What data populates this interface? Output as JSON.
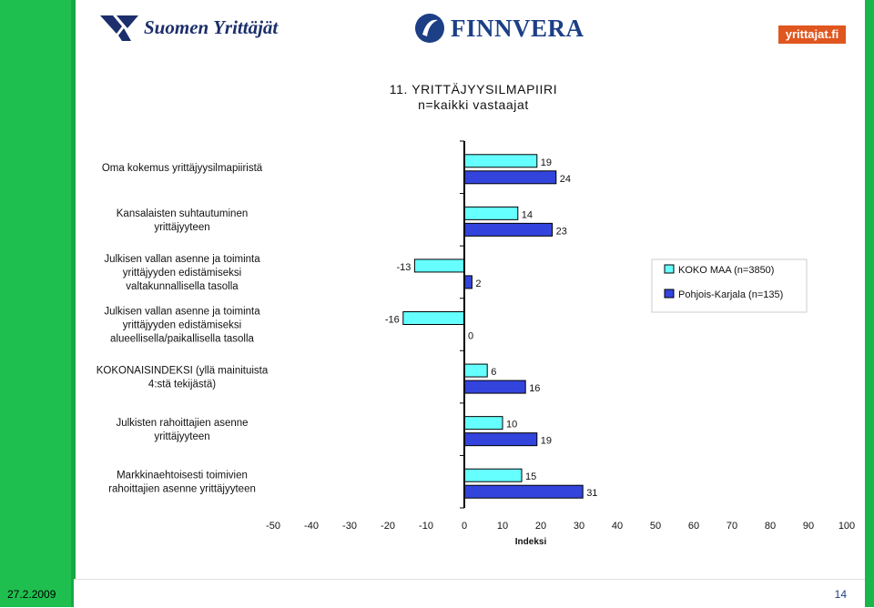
{
  "header": {
    "logo_left": "Suomen Yrittäjät",
    "logo_center": "FINNVERA",
    "logo_right": "yrittajat.fi"
  },
  "footer": {
    "date": "27.2.2009",
    "page": "14"
  },
  "chart_data": {
    "type": "bar",
    "orientation": "horizontal",
    "title": "11. YRITTÄJYYSILMAPIIRI",
    "subtitle": "n=kaikki vastaajat",
    "xlabel": "Indeksi",
    "ylabel": "",
    "xlim": [
      -50,
      100
    ],
    "xticks": [
      -50,
      -40,
      -30,
      -20,
      -10,
      0,
      10,
      20,
      30,
      40,
      50,
      60,
      70,
      80,
      90,
      100
    ],
    "legend_position": "right",
    "colors": {
      "KOKO MAA (n=3850)": "#66ffff",
      "Pohjois-Karjala (n=135)": "#3344dd"
    },
    "categories": [
      [
        "Oma kokemus yrittäjyysilmapiiristä"
      ],
      [
        "Kansalaisten suhtautuminen",
        "yrittäjyyteen"
      ],
      [
        "Julkisen vallan asenne ja toiminta",
        "yrittäjyyden edistämiseksi",
        "valtakunnallisella tasolla"
      ],
      [
        "Julkisen vallan asenne ja toiminta",
        "yrittäjyyden edistämiseksi",
        "alueellisella/paikallisella tasolla"
      ],
      [
        "KOKONAISINDEKSI (yllä mainituista",
        "4:stä tekijästä)"
      ],
      [
        "Julkisten rahoittajien asenne",
        "yrittäjyyteen"
      ],
      [
        "Markkinaehtoisesti toimivien",
        "rahoittajien asenne yrittäjyyteen"
      ]
    ],
    "series": [
      {
        "name": "KOKO MAA (n=3850)",
        "values": [
          19,
          14,
          -13,
          -16,
          6,
          10,
          15
        ]
      },
      {
        "name": "Pohjois-Karjala (n=135)",
        "values": [
          24,
          23,
          2,
          0,
          16,
          19,
          31
        ]
      }
    ]
  }
}
